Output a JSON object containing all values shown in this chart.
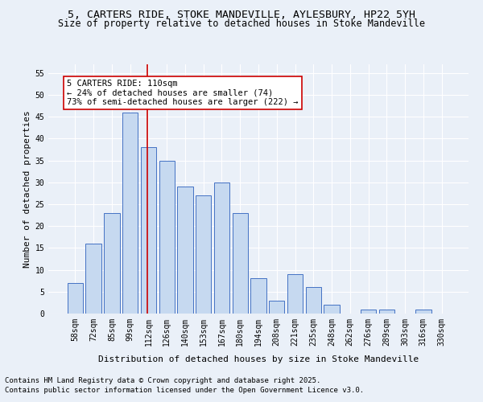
{
  "title1": "5, CARTERS RIDE, STOKE MANDEVILLE, AYLESBURY, HP22 5YH",
  "title2": "Size of property relative to detached houses in Stoke Mandeville",
  "xlabel": "Distribution of detached houses by size in Stoke Mandeville",
  "ylabel": "Number of detached properties",
  "categories": [
    "58sqm",
    "72sqm",
    "85sqm",
    "99sqm",
    "112sqm",
    "126sqm",
    "140sqm",
    "153sqm",
    "167sqm",
    "180sqm",
    "194sqm",
    "208sqm",
    "221sqm",
    "235sqm",
    "248sqm",
    "262sqm",
    "276sqm",
    "289sqm",
    "303sqm",
    "316sqm",
    "330sqm"
  ],
  "values": [
    7,
    16,
    23,
    46,
    38,
    35,
    29,
    27,
    30,
    23,
    8,
    3,
    9,
    6,
    2,
    0,
    1,
    1,
    0,
    1,
    0
  ],
  "bar_color": "#c6d9f0",
  "bar_edge_color": "#4472c4",
  "vline_x": 3.925,
  "vline_color": "#cc0000",
  "ylim": [
    0,
    57
  ],
  "yticks": [
    0,
    5,
    10,
    15,
    20,
    25,
    30,
    35,
    40,
    45,
    50,
    55
  ],
  "annotation_title": "5 CARTERS RIDE: 110sqm",
  "annotation_line1": "← 24% of detached houses are smaller (74)",
  "annotation_line2": "73% of semi-detached houses are larger (222) →",
  "annotation_box_color": "#ffffff",
  "annotation_box_edge": "#cc0000",
  "footer1": "Contains HM Land Registry data © Crown copyright and database right 2025.",
  "footer2": "Contains public sector information licensed under the Open Government Licence v3.0.",
  "bg_color": "#eaf0f8",
  "grid_color": "#ffffff",
  "title_fontsize": 9.5,
  "subtitle_fontsize": 8.5,
  "axis_label_fontsize": 8,
  "tick_fontsize": 7,
  "annotation_fontsize": 7.5,
  "footer_fontsize": 6.5
}
